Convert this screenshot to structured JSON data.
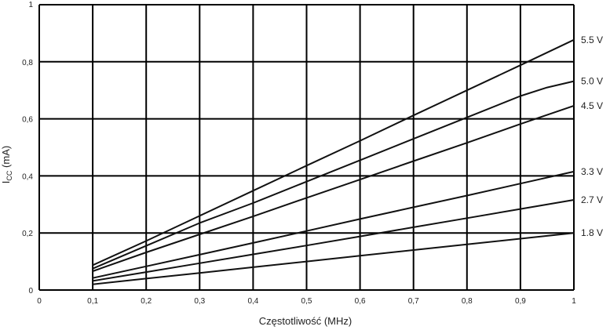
{
  "chart_data": {
    "type": "line",
    "xlabel": "Częstotliwość (MHz)",
    "ylabel": {
      "main": "I",
      "subscript": "CC",
      "suffix": " (mA)"
    },
    "xlim": [
      0,
      1
    ],
    "ylim": [
      0,
      1
    ],
    "x_ticks": [
      "0",
      "0,1",
      "0,2",
      "0,3",
      "0,4",
      "0,5",
      "0,6",
      "0,7",
      "0,8",
      "0,9",
      "1"
    ],
    "y_ticks": [
      "0",
      "0,2",
      "0,4",
      "0,6",
      "0,8",
      "1"
    ],
    "grid": true,
    "legend_placement": "right, at line ends",
    "line_color": "#111111",
    "grid_color": "#000000",
    "series": [
      {
        "name": "5.5 V",
        "x": [
          0.1,
          0.2,
          0.3,
          0.4,
          0.5,
          0.6,
          0.7,
          0.8,
          0.9,
          1.0
        ],
        "y": [
          0.087,
          0.172,
          0.26,
          0.348,
          0.436,
          0.523,
          0.612,
          0.7,
          0.788,
          0.877
        ]
      },
      {
        "name": "5.0 V",
        "x": [
          0.1,
          0.2,
          0.3,
          0.4,
          0.5,
          0.6,
          0.7,
          0.8,
          0.9,
          0.95,
          1.0
        ],
        "y": [
          0.075,
          0.155,
          0.235,
          0.305,
          0.38,
          0.455,
          0.53,
          0.605,
          0.68,
          0.71,
          0.732
        ]
      },
      {
        "name": "4.5 V",
        "x": [
          0.1,
          0.2,
          0.3,
          0.4,
          0.5,
          0.6,
          0.7,
          0.8,
          0.9,
          1.0
        ],
        "y": [
          0.066,
          0.132,
          0.195,
          0.258,
          0.323,
          0.387,
          0.452,
          0.516,
          0.582,
          0.646
        ]
      },
      {
        "name": "3.3 V",
        "x": [
          0.1,
          0.2,
          0.3,
          0.4,
          0.5,
          0.6,
          0.7,
          0.8,
          0.9,
          1.0
        ],
        "y": [
          0.042,
          0.083,
          0.124,
          0.165,
          0.207,
          0.249,
          0.29,
          0.331,
          0.373,
          0.415
        ]
      },
      {
        "name": "2.7 V",
        "x": [
          0.1,
          0.2,
          0.3,
          0.4,
          0.5,
          0.6,
          0.7,
          0.8,
          0.9,
          1.0
        ],
        "y": [
          0.032,
          0.063,
          0.094,
          0.125,
          0.156,
          0.188,
          0.22,
          0.252,
          0.284,
          0.316
        ]
      },
      {
        "name": "1.8 V",
        "x": [
          0.1,
          0.2,
          0.3,
          0.4,
          0.5,
          0.6,
          0.7,
          0.8,
          0.9,
          1.0
        ],
        "y": [
          0.02,
          0.04,
          0.06,
          0.08,
          0.1,
          0.12,
          0.14,
          0.16,
          0.18,
          0.2
        ]
      }
    ]
  }
}
